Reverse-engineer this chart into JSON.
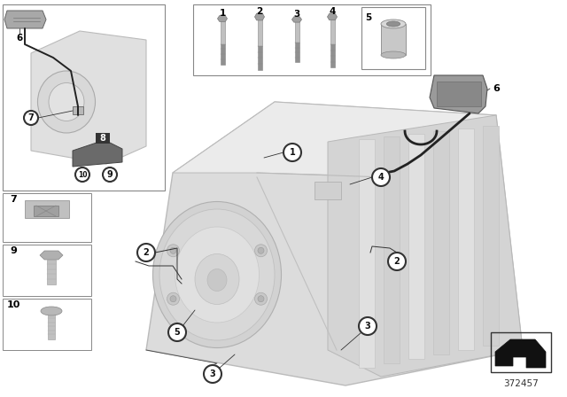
{
  "white": "#ffffff",
  "light_gray": "#e8e8e8",
  "med_gray": "#d0d0d0",
  "dark_gray": "#555555",
  "black": "#111111",
  "trans_body": "#dcdcdc",
  "trans_shadow": "#c0c0c0",
  "trans_dark": "#b0b0b0",
  "trans_highlight": "#ebebeb",
  "border_color": "#444444",
  "callout_bg": "#ffffff",
  "callout_border": "#333333",
  "filled_bg": "#333333",
  "filled_fg": "#ffffff",
  "diagram_number": "372457",
  "bolt_shaft": "#c0c0c0",
  "bolt_head": "#a0a0a0",
  "bolt_thread": "#909090",
  "cable_color": "#222222"
}
